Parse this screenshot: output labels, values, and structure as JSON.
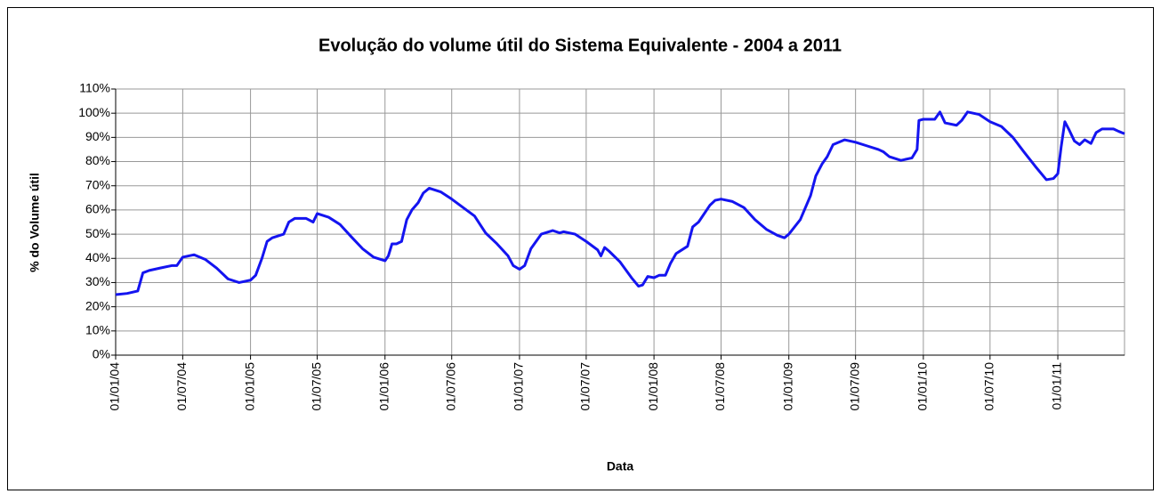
{
  "chart_data": {
    "type": "line",
    "title": "Evolução do volume útil do Sistema Equivalente - 2004 a 2011",
    "x_label": "Data",
    "y_label": "% do Volume útil",
    "grid": true,
    "xlim": [
      "2004-01-01",
      "2011-07-01"
    ],
    "xticks": [
      {
        "value": "2004-01-01",
        "label": "01/01/04"
      },
      {
        "value": "2004-07-01",
        "label": "01/07/04"
      },
      {
        "value": "2005-01-01",
        "label": "01/01/05"
      },
      {
        "value": "2005-07-01",
        "label": "01/07/05"
      },
      {
        "value": "2006-01-01",
        "label": "01/01/06"
      },
      {
        "value": "2006-07-01",
        "label": "01/07/06"
      },
      {
        "value": "2007-01-01",
        "label": "01/01/07"
      },
      {
        "value": "2007-07-01",
        "label": "01/07/07"
      },
      {
        "value": "2008-01-01",
        "label": "01/01/08"
      },
      {
        "value": "2008-07-01",
        "label": "01/07/08"
      },
      {
        "value": "2009-01-01",
        "label": "01/01/09"
      },
      {
        "value": "2009-07-01",
        "label": "01/07/09"
      },
      {
        "value": "2010-01-01",
        "label": "01/01/10"
      },
      {
        "value": "2010-07-01",
        "label": "01/07/10"
      },
      {
        "value": "2011-01-01",
        "label": "01/01/11"
      }
    ],
    "ylim": [
      0,
      110
    ],
    "yticks": [
      {
        "value": 0,
        "label": "0%"
      },
      {
        "value": 10,
        "label": "10%"
      },
      {
        "value": 20,
        "label": "20%"
      },
      {
        "value": 30,
        "label": "30%"
      },
      {
        "value": 40,
        "label": "40%"
      },
      {
        "value": 50,
        "label": "50%"
      },
      {
        "value": 60,
        "label": "60%"
      },
      {
        "value": 70,
        "label": "70%"
      },
      {
        "value": 80,
        "label": "80%"
      },
      {
        "value": 90,
        "label": "90%"
      },
      {
        "value": 100,
        "label": "100%"
      },
      {
        "value": 110,
        "label": "110%"
      }
    ],
    "x": [
      "2004-01-01",
      "2004-02-01",
      "2004-03-01",
      "2004-03-15",
      "2004-04-01",
      "2004-05-01",
      "2004-06-01",
      "2004-06-15",
      "2004-07-01",
      "2004-08-01",
      "2004-09-01",
      "2004-10-01",
      "2004-11-01",
      "2004-12-01",
      "2005-01-01",
      "2005-01-15",
      "2005-02-01",
      "2005-02-15",
      "2005-03-01",
      "2005-04-01",
      "2005-04-15",
      "2005-05-01",
      "2005-06-01",
      "2005-06-20",
      "2005-07-01",
      "2005-08-01",
      "2005-09-01",
      "2005-10-01",
      "2005-11-01",
      "2005-12-01",
      "2006-01-01",
      "2006-01-10",
      "2006-01-20",
      "2006-02-01",
      "2006-02-15",
      "2006-03-01",
      "2006-03-15",
      "2006-04-01",
      "2006-04-15",
      "2006-05-01",
      "2006-06-01",
      "2006-07-01",
      "2006-08-01",
      "2006-09-01",
      "2006-10-01",
      "2006-11-01",
      "2006-12-01",
      "2006-12-15",
      "2007-01-01",
      "2007-01-15",
      "2007-02-01",
      "2007-03-01",
      "2007-04-01",
      "2007-04-20",
      "2007-05-01",
      "2007-06-01",
      "2007-07-01",
      "2007-08-01",
      "2007-08-10",
      "2007-08-20",
      "2007-09-01",
      "2007-10-01",
      "2007-11-01",
      "2007-11-20",
      "2007-12-01",
      "2007-12-15",
      "2008-01-01",
      "2008-01-15",
      "2008-02-01",
      "2008-02-15",
      "2008-03-01",
      "2008-04-01",
      "2008-04-15",
      "2008-05-01",
      "2008-06-01",
      "2008-06-15",
      "2008-07-01",
      "2008-08-01",
      "2008-09-01",
      "2008-10-01",
      "2008-11-01",
      "2008-12-01",
      "2008-12-20",
      "2009-01-01",
      "2009-02-01",
      "2009-03-01",
      "2009-03-15",
      "2009-04-01",
      "2009-04-15",
      "2009-05-01",
      "2009-06-01",
      "2009-07-01",
      "2009-08-01",
      "2009-09-01",
      "2009-09-15",
      "2009-10-01",
      "2009-11-01",
      "2009-12-01",
      "2009-12-15",
      "2009-12-20",
      "2010-01-01",
      "2010-02-01",
      "2010-02-15",
      "2010-03-01",
      "2010-04-01",
      "2010-04-15",
      "2010-05-01",
      "2010-06-01",
      "2010-07-01",
      "2010-08-01",
      "2010-09-01",
      "2010-10-01",
      "2010-11-01",
      "2010-12-01",
      "2010-12-20",
      "2011-01-01",
      "2011-01-10",
      "2011-01-20",
      "2011-02-01",
      "2011-02-15",
      "2011-03-01",
      "2011-03-15",
      "2011-04-01",
      "2011-04-15",
      "2011-05-01",
      "2011-06-01",
      "2011-06-15",
      "2011-07-01"
    ],
    "series": [
      {
        "name": "% do Volume útil",
        "color": "#1414f0",
        "values": [
          25,
          25.5,
          26.5,
          34,
          35,
          36,
          37,
          37,
          40.5,
          41.5,
          39.5,
          36,
          31.5,
          30,
          31,
          33,
          40,
          47,
          48.5,
          50,
          55,
          56.5,
          56.5,
          55,
          58.5,
          57,
          54,
          49,
          44,
          40.5,
          39,
          41,
          46,
          46,
          47,
          56,
          60,
          63,
          67,
          69,
          67.5,
          64.5,
          61,
          57.5,
          50.5,
          46,
          41,
          37,
          35.5,
          37,
          44,
          50,
          51.5,
          50.5,
          51,
          50,
          47,
          43.5,
          41,
          44.5,
          43,
          38.5,
          32,
          28.5,
          29,
          32.5,
          32,
          33,
          33,
          38,
          42,
          45,
          53,
          55,
          62,
          64,
          64.5,
          63.5,
          61,
          56,
          52,
          49.5,
          48.5,
          50,
          56,
          66,
          74,
          79,
          82,
          87,
          89,
          88,
          86.5,
          85,
          84,
          82,
          80.5,
          81.5,
          85,
          97,
          97.5,
          97.5,
          100.5,
          96,
          95,
          97,
          100.5,
          99.5,
          96.5,
          94.5,
          90,
          84,
          78,
          72.5,
          73,
          75,
          86,
          96.5,
          93,
          88.5,
          87,
          89,
          87.5,
          92,
          93.5,
          93.5,
          92.5,
          91.5
        ]
      }
    ]
  }
}
